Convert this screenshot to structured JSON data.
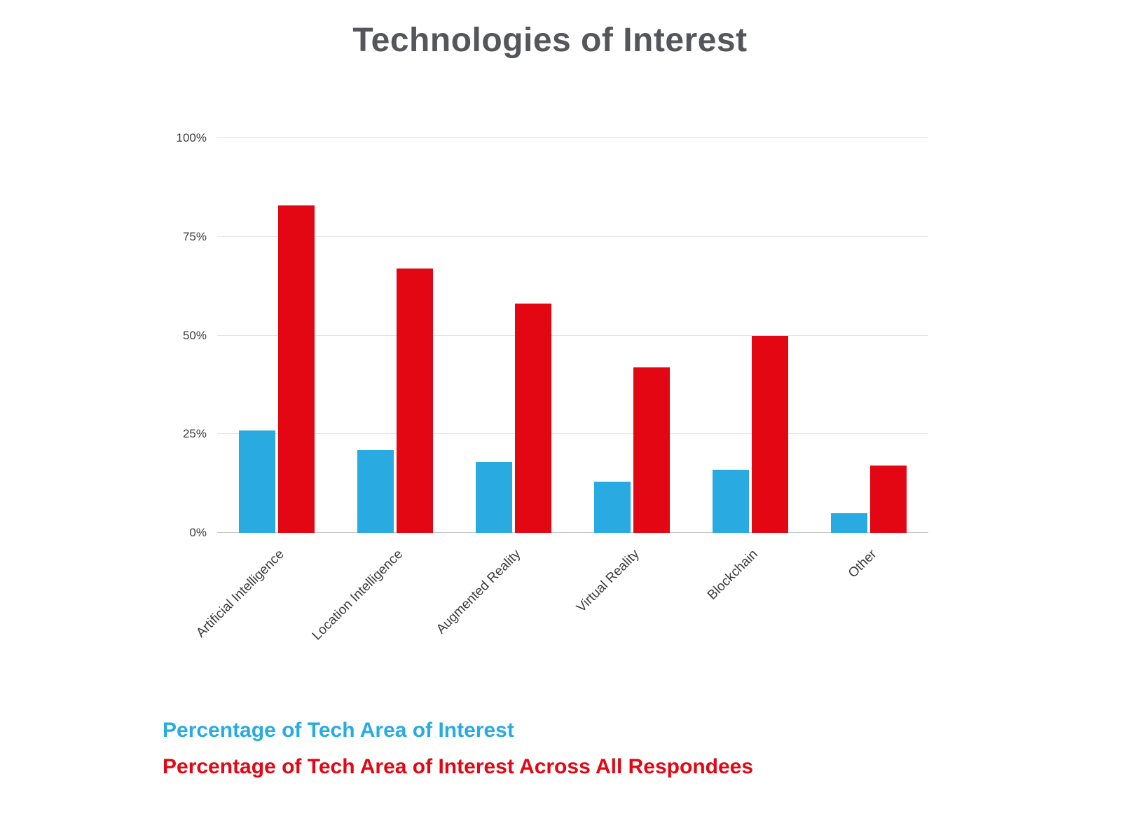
{
  "page_title": "Technologies of Interest",
  "chart_data": {
    "type": "bar",
    "title": "Technologies of Interest",
    "categories": [
      "Artificial Intelligence",
      "Location Intelligence",
      "Augmented Reality",
      "Virtual Reality",
      "Blockchain",
      "Other"
    ],
    "series": [
      {
        "name": "Percentage of Tech Area of Interest",
        "color": "#29ABE2",
        "values": [
          26,
          21,
          18,
          13,
          16,
          5
        ]
      },
      {
        "name": "Percentage of Tech Area of Interest Across All Respondees",
        "color": "#E30613",
        "values": [
          83,
          67,
          58,
          42,
          50,
          17
        ]
      }
    ],
    "xlabel": "",
    "ylabel": "",
    "ylim": [
      0,
      100
    ],
    "yticks": [
      {
        "value": 0,
        "label": "0%"
      },
      {
        "value": 25,
        "label": "25%"
      },
      {
        "value": 50,
        "label": "50%"
      },
      {
        "value": 75,
        "label": "75%"
      },
      {
        "value": 100,
        "label": "100%"
      }
    ],
    "grid": true,
    "legend_position": "bottom-left"
  },
  "colors": {
    "series1": "#29ABE2",
    "series2": "#E30613",
    "title_text": "#55565a",
    "tick_text": "#3c3c3c",
    "gridline": "#e4e4e4"
  }
}
